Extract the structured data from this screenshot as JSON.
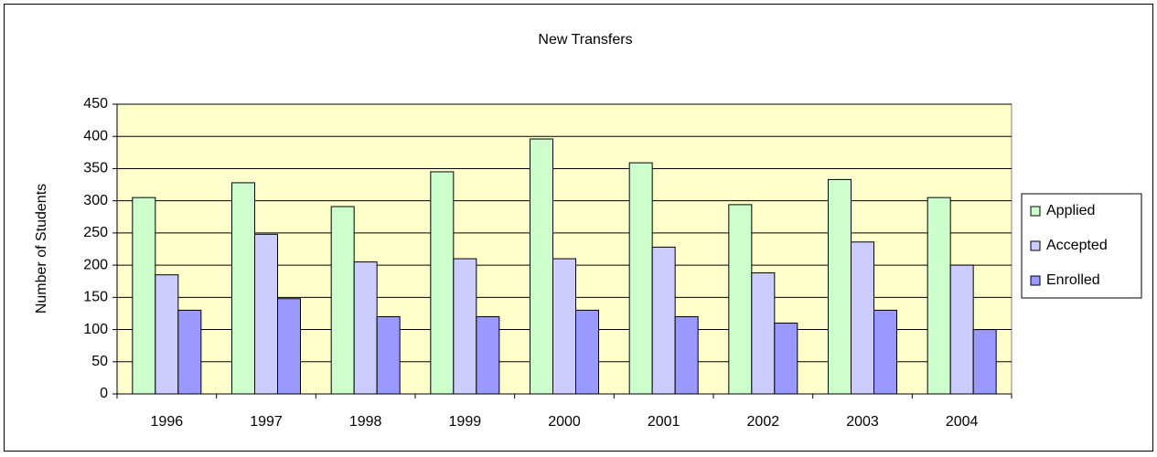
{
  "chart_data": {
    "type": "bar",
    "title": "New Transfers",
    "y_label": "Number of Students",
    "categories": [
      "1996",
      "1997",
      "1998",
      "1999",
      "2000",
      "2001",
      "2002",
      "2003",
      "2004"
    ],
    "series": [
      {
        "name": "Applied",
        "color": "#ccffcc",
        "values": [
          305,
          328,
          291,
          345,
          396,
          359,
          294,
          333,
          305
        ]
      },
      {
        "name": "Accepted",
        "color": "#ccccff",
        "values": [
          185,
          248,
          205,
          210,
          210,
          228,
          188,
          236,
          200
        ]
      },
      {
        "name": "Enrolled",
        "color": "#9999ff",
        "values": [
          130,
          148,
          120,
          120,
          130,
          120,
          110,
          130,
          100
        ]
      }
    ],
    "ylim": [
      0,
      450
    ],
    "yticks": [
      0,
      50,
      100,
      150,
      200,
      250,
      300,
      350,
      400,
      450
    ],
    "grid": true,
    "legend": "right",
    "plot_background": "#ffffcc"
  }
}
